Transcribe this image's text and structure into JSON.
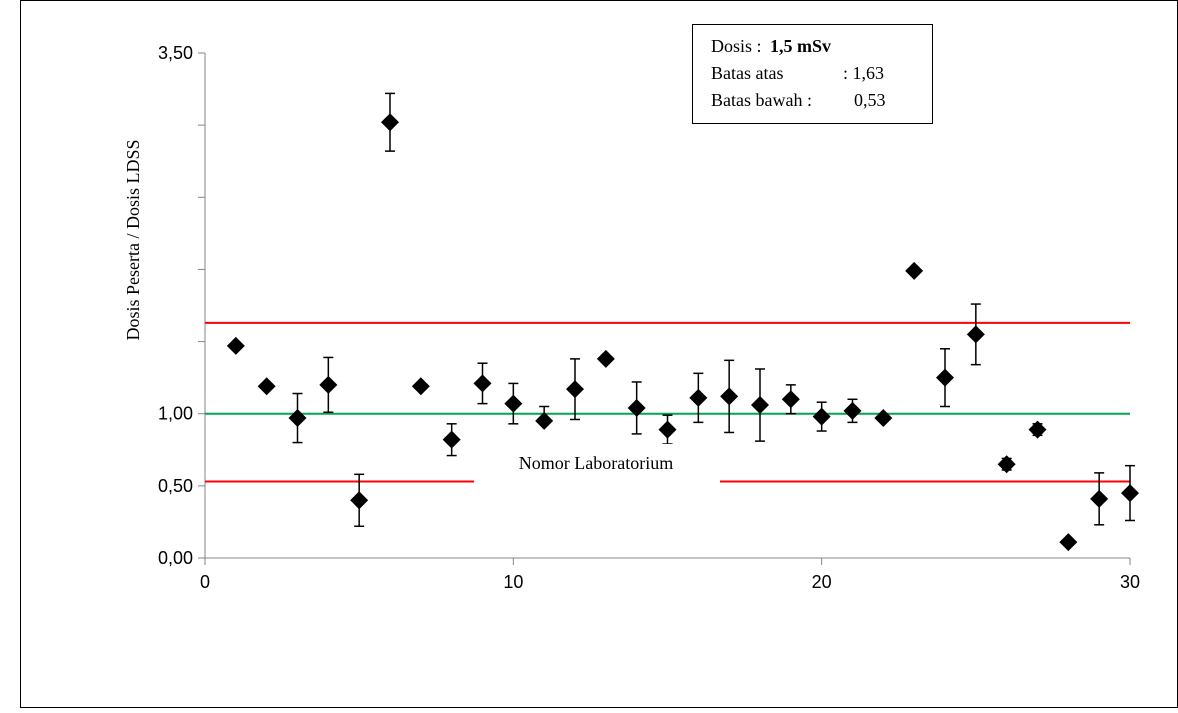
{
  "chart_data": {
    "type": "scatter",
    "xlabel": "Nomor Laboratorium",
    "ylabel": "Dosis Peserta / Dosis LDSS",
    "xlim": [
      0,
      30
    ],
    "ylim": [
      0,
      3.5
    ],
    "x_ticks": [
      "0",
      "10",
      "20",
      "30"
    ],
    "y_tick_labels": [
      "3,50",
      "1,00",
      "0,50",
      "0,00"
    ],
    "y_tick_values_labeled": [
      3.5,
      1.0,
      0.5,
      0.0
    ],
    "y_tick_marks": [
      0,
      0.5,
      1.0,
      1.5,
      2.0,
      2.5,
      3.0,
      3.5
    ],
    "info_box": {
      "dose_label": "Dosis :",
      "dose_value": "1,5 mSv",
      "upper_label": "Batas atas",
      "upper_value": ": 1,63",
      "lower_label": "Batas bawah :",
      "lower_value": "0,53"
    },
    "reference_lines": [
      {
        "y": 1.63,
        "color": "#ff0000"
      },
      {
        "y": 1.0,
        "color": "#00a650"
      },
      {
        "y": 0.53,
        "color": "#ff0000"
      }
    ],
    "marker_color": "#000000",
    "points": [
      {
        "x": 1,
        "y": 1.47
      },
      {
        "x": 2,
        "y": 1.19
      },
      {
        "x": 3,
        "y": 0.97,
        "err": 0.17
      },
      {
        "x": 4,
        "y": 1.2,
        "err": 0.19
      },
      {
        "x": 5,
        "y": 0.4,
        "err": 0.18
      },
      {
        "x": 6,
        "y": 3.02,
        "err": 0.2
      },
      {
        "x": 7,
        "y": 1.19
      },
      {
        "x": 8,
        "y": 0.82,
        "err": 0.11
      },
      {
        "x": 9,
        "y": 1.21,
        "err": 0.14
      },
      {
        "x": 10,
        "y": 1.07,
        "err": 0.14
      },
      {
        "x": 11,
        "y": 0.95,
        "err": 0.1,
        "err_side": "top"
      },
      {
        "x": 12,
        "y": 1.17,
        "err": 0.21
      },
      {
        "x": 13,
        "y": 1.38
      },
      {
        "x": 14,
        "y": 1.04,
        "err": 0.18
      },
      {
        "x": 15,
        "y": 0.89,
        "err": 0.1
      },
      {
        "x": 16,
        "y": 1.11,
        "err": 0.17
      },
      {
        "x": 17,
        "y": 1.12,
        "err": 0.25
      },
      {
        "x": 18,
        "y": 1.06,
        "err": 0.25
      },
      {
        "x": 19,
        "y": 1.1,
        "err": 0.1
      },
      {
        "x": 20,
        "y": 0.98,
        "err": 0.1
      },
      {
        "x": 21,
        "y": 1.02,
        "err": 0.08
      },
      {
        "x": 22,
        "y": 0.97
      },
      {
        "x": 23,
        "y": 1.99
      },
      {
        "x": 24,
        "y": 1.25,
        "err": 0.2
      },
      {
        "x": 25,
        "y": 1.55,
        "err": 0.21
      },
      {
        "x": 26,
        "y": 0.65,
        "err": 0.04
      },
      {
        "x": 27,
        "y": 0.89,
        "err": 0.04
      },
      {
        "x": 28,
        "y": 0.11
      },
      {
        "x": 29,
        "y": 0.41,
        "err": 0.18
      },
      {
        "x": 30,
        "y": 0.45,
        "err": 0.19
      }
    ]
  }
}
